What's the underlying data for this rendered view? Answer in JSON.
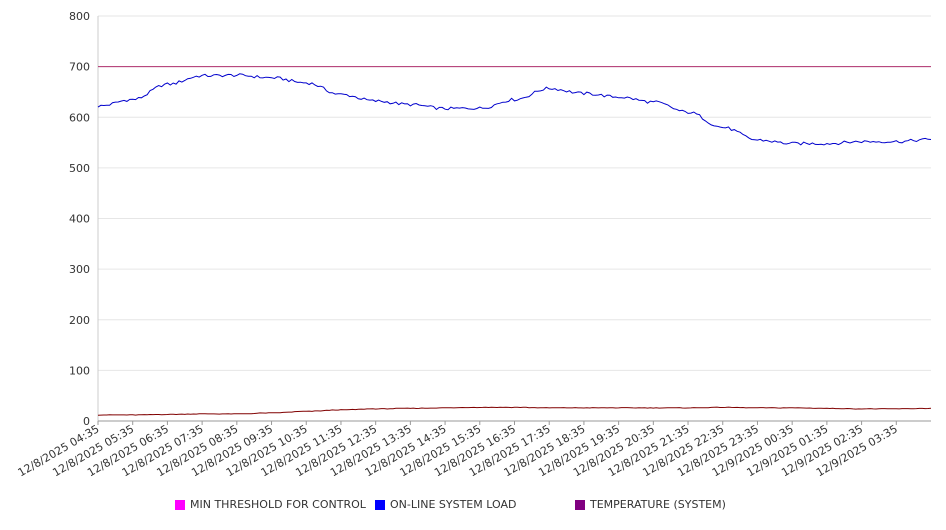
{
  "chart_data": {
    "type": "line",
    "ylim": [
      0,
      800
    ],
    "yticks": [
      0,
      100,
      200,
      300,
      400,
      500,
      600,
      700,
      800
    ],
    "x_tick_labels": [
      "12/8/2025 04:35",
      "12/8/2025 05:35",
      "12/8/2025 06:35",
      "12/8/2025 07:35",
      "12/8/2025 08:35",
      "12/8/2025 09:35",
      "12/8/2025 10:35",
      "12/8/2025 11:35",
      "12/8/2025 12:35",
      "12/8/2025 13:35",
      "12/8/2025 14:35",
      "12/8/2025 15:35",
      "12/8/2025 16:35",
      "12/8/2025 17:35",
      "12/8/2025 18:35",
      "12/8/2025 19:35",
      "12/8/2025 20:35",
      "12/8/2025 21:35",
      "12/8/2025 22:35",
      "12/8/2025 23:35",
      "12/9/2025 00:35",
      "12/9/2025 01:35",
      "12/9/2025 02:35",
      "12/9/2025 03:35"
    ],
    "x": [
      "12/8/2025 04:35",
      "12/8/2025 05:35",
      "12/8/2025 06:35",
      "12/8/2025 07:35",
      "12/8/2025 08:35",
      "12/8/2025 09:35",
      "12/8/2025 10:35",
      "12/8/2025 11:35",
      "12/8/2025 12:35",
      "12/8/2025 13:35",
      "12/8/2025 14:35",
      "12/8/2025 15:35",
      "12/8/2025 16:35",
      "12/8/2025 17:35",
      "12/8/2025 18:35",
      "12/8/2025 19:35",
      "12/8/2025 20:35",
      "12/8/2025 21:35",
      "12/8/2025 22:35",
      "12/8/2025 23:35",
      "12/9/2025 00:35",
      "12/9/2025 01:35",
      "12/9/2025 02:35",
      "12/9/2025 03:35",
      "12/9/2025 04:30"
    ],
    "grid": true,
    "legend_position": "bottom",
    "series": [
      {
        "name": "MIN THRESHOLD FOR CONTROL",
        "color": "#ff00ff",
        "line_color": "#b0306e",
        "values": [
          700,
          700,
          700,
          700,
          700,
          700,
          700,
          700,
          700,
          700,
          700,
          700,
          700,
          700,
          700,
          700,
          700,
          700,
          700,
          700,
          700,
          700,
          700,
          700,
          700
        ]
      },
      {
        "name": "ON-LINE SYSTEM LOAD",
        "color": "#0000ff",
        "line_color": "#0000cc",
        "values": [
          622,
          635,
          665,
          682,
          683,
          678,
          668,
          645,
          632,
          625,
          617,
          618,
          635,
          657,
          647,
          640,
          630,
          610,
          580,
          555,
          548,
          548,
          552,
          552,
          556
        ]
      },
      {
        "name": "TEMPERATURE (SYSTEM)",
        "color": "#800080",
        "line_color": "#800000",
        "values": [
          12,
          12,
          13,
          14,
          14,
          16,
          19,
          22,
          24,
          25,
          26,
          27,
          27,
          26,
          26,
          26,
          26,
          26,
          27,
          26,
          26,
          25,
          24,
          24,
          25
        ]
      }
    ]
  }
}
